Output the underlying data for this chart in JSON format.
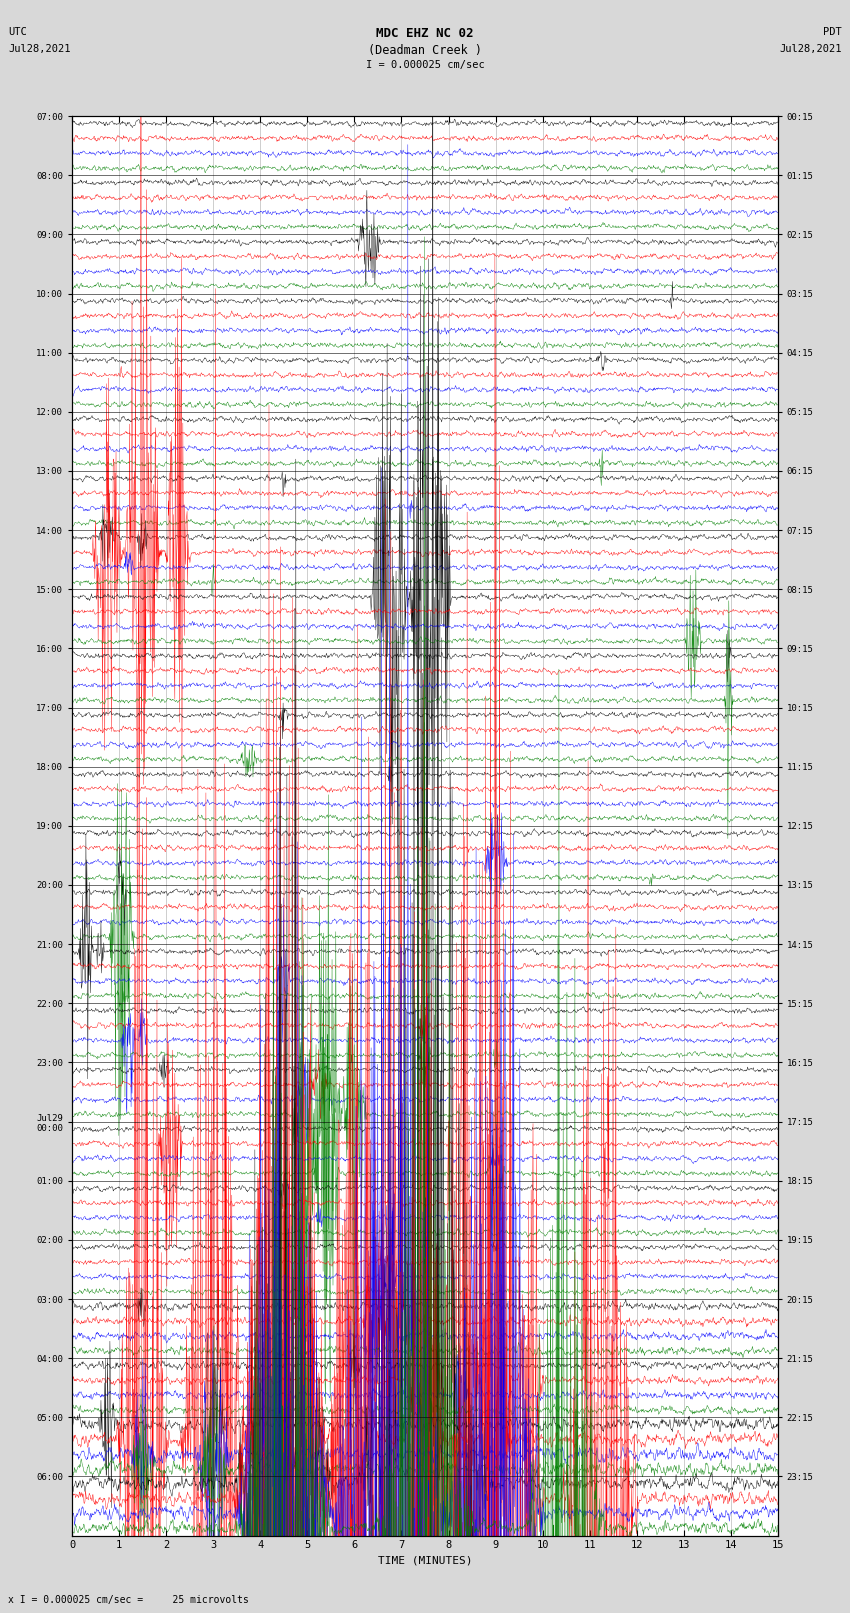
{
  "title_line1": "MDC EHZ NC 02",
  "title_line2": "(Deadman Creek )",
  "title_line3": "I = 0.000025 cm/sec",
  "left_label_line1": "UTC",
  "left_label_line2": "Jul28,2021",
  "right_label_line1": "PDT",
  "right_label_line2": "Jul28,2021",
  "bottom_label": "TIME (MINUTES)",
  "bottom_note": "x I = 0.000025 cm/sec =     25 microvolts",
  "utc_times": [
    "07:00",
    "08:00",
    "09:00",
    "10:00",
    "11:00",
    "12:00",
    "13:00",
    "14:00",
    "15:00",
    "16:00",
    "17:00",
    "18:00",
    "19:00",
    "20:00",
    "21:00",
    "22:00",
    "23:00",
    "Jul29\n00:00",
    "01:00",
    "02:00",
    "03:00",
    "04:00",
    "05:00",
    "06:00"
  ],
  "pdt_times": [
    "00:15",
    "01:15",
    "02:15",
    "03:15",
    "04:15",
    "05:15",
    "06:15",
    "07:15",
    "08:15",
    "09:15",
    "10:15",
    "11:15",
    "12:15",
    "13:15",
    "14:15",
    "15:15",
    "16:15",
    "17:15",
    "18:15",
    "19:15",
    "20:15",
    "21:15",
    "22:15",
    "23:15"
  ],
  "colors": [
    "black",
    "red",
    "blue",
    "green"
  ],
  "bg_color": "#d8d8d8",
  "plot_bg": "white",
  "n_rows": 24,
  "minutes_per_row": 15,
  "spm": 100,
  "xlim": [
    0,
    15
  ],
  "xticks": [
    0,
    1,
    2,
    3,
    4,
    5,
    6,
    7,
    8,
    9,
    10,
    11,
    12,
    13,
    14,
    15
  ],
  "grid_color": "#aaaaaa",
  "separator_color": "#000000"
}
